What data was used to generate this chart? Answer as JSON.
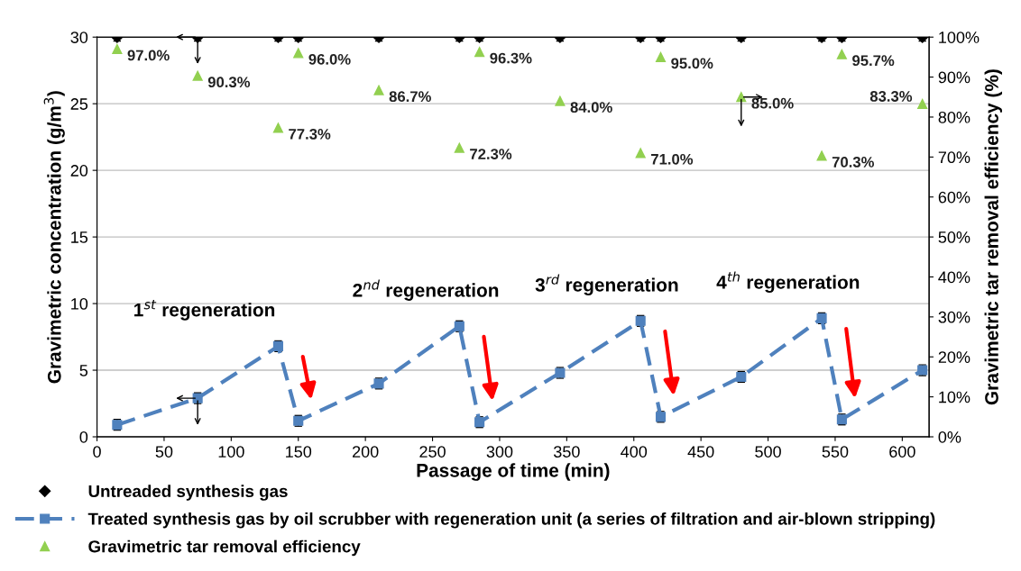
{
  "chart_data": {
    "type": "scatter",
    "xlabel": "Passage of time (min)",
    "ylabel": "Gravimetric concentration (g/m$^{3}$)",
    "y2label": "Gravimetric tar removal efficiency (%)",
    "x": [
      15,
      75,
      135,
      150,
      210,
      270,
      285,
      345,
      405,
      420,
      480,
      540,
      555,
      615
    ],
    "series": [
      {
        "name": "Untreaded synthesis gas",
        "color": "#000000",
        "marker": "diamond",
        "values": [
          30,
          30,
          30,
          30,
          30,
          30,
          30,
          30,
          30,
          30,
          30,
          30,
          30,
          30
        ],
        "errors": [
          0.3,
          0.3,
          0.3,
          0.3,
          0.3,
          0.3,
          0.3,
          0.3,
          0.3,
          0.3,
          0.3,
          0.3,
          0.3,
          0.3
        ]
      },
      {
        "name": "Treated synthesis gas by oil scrubber with regeneration unit (a series of filtration and air-blown stripping)",
        "type": "line",
        "color": "#4f81bd",
        "marker": "square",
        "line_style": "dashed",
        "values": [
          0.9,
          2.9,
          6.8,
          1.2,
          4.0,
          8.3,
          1.1,
          4.8,
          8.7,
          1.5,
          4.5,
          8.9,
          1.3,
          5.0
        ],
        "errors": [
          0.4,
          0.4,
          0.4,
          0.4,
          0.4,
          0.4,
          0.4,
          0.4,
          0.4,
          0.4,
          0.4,
          0.4,
          0.4,
          0.4
        ]
      },
      {
        "name": "Gravimetric tar removal efficiency",
        "axis": "y2",
        "color": "#92d050",
        "marker": "triangle",
        "values": [
          97.0,
          90.3,
          77.3,
          96.0,
          86.7,
          72.3,
          96.3,
          84.0,
          71.0,
          95.0,
          85.0,
          70.3,
          95.7,
          83.3
        ],
        "value_labels": [
          "97.0%",
          "90.3%",
          "77.3%",
          "96.0%",
          "86.7%",
          "72.3%",
          "96.3%",
          "84.0%",
          "71.0%",
          "95.0%",
          "85.0%",
          "70.3%",
          "95.7%",
          "83.3%"
        ]
      }
    ],
    "xlim": [
      0,
      620
    ],
    "xticks": [
      0,
      50,
      100,
      150,
      200,
      250,
      300,
      350,
      400,
      450,
      500,
      550,
      600
    ],
    "ylim": [
      0,
      30
    ],
    "yticks": [
      0,
      5,
      10,
      15,
      20,
      25,
      30
    ],
    "y2lim": [
      0,
      100
    ],
    "y2ticks": [
      {
        "value": 0,
        "label": "0%"
      },
      {
        "value": 10,
        "label": "10%"
      },
      {
        "value": 20,
        "label": "20%"
      },
      {
        "value": 30,
        "label": "30%"
      },
      {
        "value": 40,
        "label": "40%"
      },
      {
        "value": 50,
        "label": "50%"
      },
      {
        "value": 60,
        "label": "60%"
      },
      {
        "value": 70,
        "label": "70%"
      },
      {
        "value": 80,
        "label": "80%"
      },
      {
        "value": 90,
        "label": "90%"
      },
      {
        "value": 100,
        "label": "100%"
      }
    ],
    "grid": "y",
    "legend": "bottom",
    "annotations": [
      "1$^{st}$ regeneration",
      "2$^{nd}$ regeneration",
      "3$^{rd}$ regeneration",
      "4$^{th}$ regeneration"
    ]
  }
}
